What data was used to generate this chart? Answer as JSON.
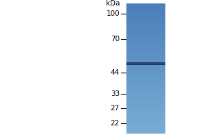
{
  "kda_label": "kDa",
  "markers": [
    100,
    70,
    44,
    33,
    27,
    22
  ],
  "band_kda": 50,
  "lane_color_top": "#4a7fba",
  "lane_color_bottom": "#7aadd4",
  "band_color": "#1a3055",
  "background_color": "#ffffff",
  "tick_label_fontsize": 7.5,
  "kda_label_fontsize": 7.5,
  "fig_width": 3.0,
  "fig_height": 2.0,
  "dpi": 100,
  "ymin": 19,
  "ymax": 115
}
